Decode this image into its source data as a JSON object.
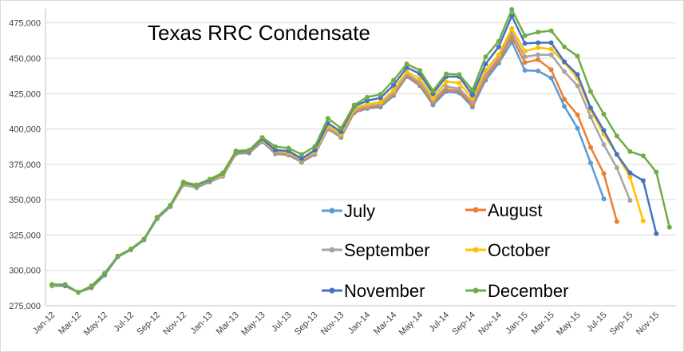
{
  "chart_data": {
    "type": "line",
    "title": "Texas RRC Condensate",
    "xlabel": "",
    "ylabel": "",
    "ylim": [
      275000,
      485000
    ],
    "y_ticks": [
      "275,000",
      "300,000",
      "325,000",
      "350,000",
      "375,000",
      "400,000",
      "425,000",
      "450,000",
      "475,000"
    ],
    "y_tick_values": [
      275000,
      300000,
      325000,
      350000,
      375000,
      400000,
      425000,
      450000,
      475000
    ],
    "categories": [
      "Jan-12",
      "Feb-12",
      "Mar-12",
      "Apr-12",
      "May-12",
      "Jun-12",
      "Jul-12",
      "Aug-12",
      "Sep-12",
      "Oct-12",
      "Nov-12",
      "Dec-12",
      "Jan-13",
      "Feb-13",
      "Mar-13",
      "Apr-13",
      "May-13",
      "Jun-13",
      "Jul-13",
      "Aug-13",
      "Sep-13",
      "Oct-13",
      "Nov-13",
      "Dec-13",
      "Jan-14",
      "Feb-14",
      "Mar-14",
      "Apr-14",
      "May-14",
      "Jun-14",
      "Jul-14",
      "Aug-14",
      "Sep-14",
      "Oct-14",
      "Nov-14",
      "Dec-14",
      "Jan-15",
      "Feb-15",
      "Mar-15",
      "Apr-15",
      "May-15",
      "Jun-15",
      "Jul-15",
      "Aug-15",
      "Sep-15",
      "Oct-15",
      "Nov-15",
      "Dec-15"
    ],
    "x_tick_labels": [
      "Jan-12",
      "Mar-12",
      "May-12",
      "Jul-12",
      "Sep-12",
      "Nov-12",
      "Jan-13",
      "Mar-13",
      "May-13",
      "Jul-13",
      "Sep-13",
      "Nov-13",
      "Jan-14",
      "Mar-14",
      "May-14",
      "Jul-14",
      "Sep-14",
      "Nov-14",
      "Jan-15",
      "Mar-15",
      "May-15",
      "Jul-15",
      "Sep-15",
      "Nov-15"
    ],
    "grid": true,
    "legend_placement": "lower-right",
    "series": [
      {
        "name": "July",
        "color": "#5b9bd5",
        "values": [
          289000,
          289000,
          284500,
          287500,
          296500,
          309500,
          314500,
          321500,
          336500,
          345000,
          360500,
          358500,
          362500,
          366500,
          382500,
          383000,
          391000,
          382500,
          381500,
          376500,
          382000,
          400000,
          394000,
          411500,
          414500,
          415500,
          423500,
          437000,
          430500,
          417000,
          426500,
          425500,
          415500,
          434500,
          446500,
          461500,
          441500,
          441000,
          436000,
          416000,
          400500,
          376000,
          350500,
          null,
          null,
          null,
          null,
          null
        ]
      },
      {
        "name": "August",
        "color": "#ed7d31",
        "values": [
          289500,
          289500,
          284500,
          288000,
          297000,
          310000,
          315000,
          322000,
          337000,
          345500,
          361000,
          359000,
          363000,
          367000,
          383000,
          383500,
          391500,
          383000,
          382000,
          377000,
          382500,
          400500,
          394500,
          412000,
          415000,
          416500,
          424500,
          438000,
          431500,
          418500,
          428000,
          427000,
          417000,
          436500,
          448500,
          465000,
          447000,
          449000,
          442000,
          421000,
          410000,
          387000,
          368500,
          334500,
          null,
          null,
          null,
          null
        ]
      },
      {
        "name": "September",
        "color": "#a5a5a5",
        "values": [
          289500,
          289500,
          284500,
          288000,
          297000,
          310000,
          315000,
          322000,
          337000,
          345500,
          361000,
          359000,
          363500,
          367000,
          383500,
          384000,
          392000,
          383500,
          382500,
          377500,
          383000,
          401000,
          395000,
          413000,
          416000,
          417500,
          425500,
          439000,
          433000,
          420000,
          430000,
          428500,
          419000,
          438500,
          450500,
          468000,
          451000,
          452500,
          452500,
          440500,
          430500,
          408500,
          389000,
          372500,
          349500,
          null,
          null,
          null
        ]
      },
      {
        "name": "October",
        "color": "#ffc000",
        "values": [
          289500,
          289500,
          284500,
          288000,
          297500,
          310000,
          315000,
          322000,
          337500,
          346000,
          361500,
          359500,
          364000,
          367500,
          384000,
          384500,
          392500,
          384500,
          383500,
          378500,
          384000,
          402000,
          396500,
          414500,
          417500,
          419000,
          427500,
          440500,
          435500,
          422000,
          433500,
          432500,
          421500,
          441500,
          452500,
          471000,
          455000,
          457500,
          456500,
          447000,
          436000,
          413500,
          396500,
          382000,
          366000,
          335000,
          null,
          null
        ]
      },
      {
        "name": "November",
        "color": "#4472c4",
        "values": [
          290000,
          289500,
          284500,
          288500,
          297500,
          310000,
          315000,
          322000,
          337500,
          346000,
          362000,
          360000,
          364000,
          368500,
          384000,
          384500,
          393000,
          385000,
          384500,
          379000,
          385000,
          404000,
          398000,
          416000,
          420000,
          422000,
          431000,
          443500,
          439000,
          425000,
          437000,
          437000,
          424000,
          446000,
          458000,
          480000,
          460500,
          461000,
          461000,
          447500,
          438500,
          415000,
          399000,
          382000,
          369000,
          363500,
          326000,
          null
        ]
      },
      {
        "name": "December",
        "color": "#70ad47",
        "values": [
          290000,
          290000,
          284500,
          289000,
          298000,
          310000,
          315000,
          322000,
          337500,
          346000,
          362500,
          360500,
          364500,
          369000,
          384500,
          385000,
          394000,
          387500,
          386500,
          382000,
          387500,
          407500,
          400500,
          417000,
          422500,
          424500,
          434500,
          446000,
          441500,
          427000,
          439000,
          438500,
          427500,
          451000,
          462000,
          484500,
          466000,
          468500,
          469500,
          458000,
          451500,
          426500,
          410500,
          395000,
          384000,
          381000,
          369500,
          330500
        ]
      }
    ]
  }
}
